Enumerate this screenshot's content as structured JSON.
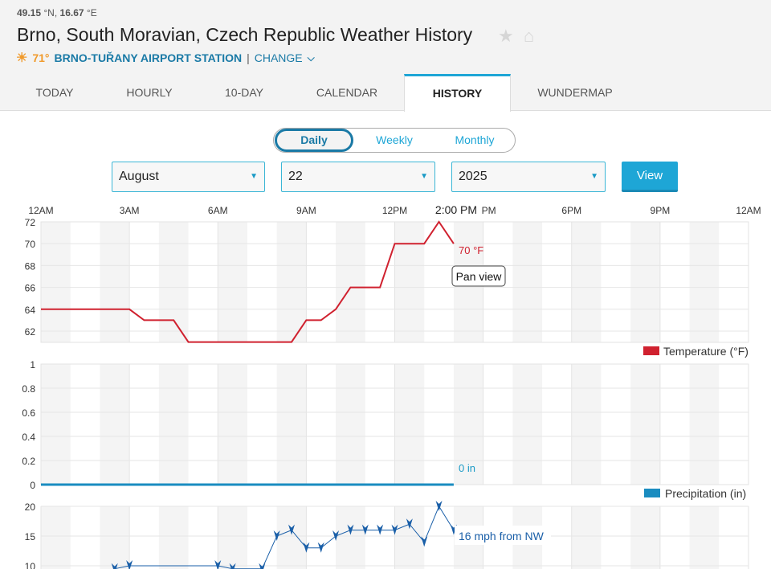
{
  "header": {
    "lat": "49.15",
    "lat_unit": "°N,",
    "lon": "16.67",
    "lon_unit": "°E",
    "title": "Brno, South Moravian, Czech Republic Weather History",
    "current_temp": "71°",
    "station": "BRNO-TUŘANY AIRPORT STATION",
    "separator": "|",
    "change": "CHANGE"
  },
  "tabs": [
    {
      "label": "TODAY"
    },
    {
      "label": "HOURLY"
    },
    {
      "label": "10-DAY"
    },
    {
      "label": "CALENDAR"
    },
    {
      "label": "HISTORY",
      "active": true
    },
    {
      "label": "WUNDERMAP"
    }
  ],
  "period": {
    "options": [
      "Daily",
      "Weekly",
      "Monthly"
    ],
    "selected": "Daily"
  },
  "date": {
    "month": "August",
    "day": "22",
    "year": "2025",
    "view": "View"
  },
  "colors": {
    "accent": "#1ea6d6",
    "temperature": "#d0212f",
    "precip": "#1a8cc0",
    "wind": "#1a5fa8"
  },
  "hover": {
    "time": "2:00 PM",
    "temp_label": "70 °F",
    "precip_label": "0 in",
    "wind_label": "16 mph from NW",
    "pan": "Pan view"
  },
  "chart_data": [
    {
      "type": "line",
      "title": "Temperature",
      "legend": "Temperature (°F)",
      "legend_position": "bottom-right",
      "x_ticks": [
        "12AM",
        "3AM",
        "6AM",
        "9AM",
        "12PM",
        "3PM",
        "6PM",
        "9PM",
        "12AM"
      ],
      "y_ticks": [
        62,
        64,
        66,
        68,
        70,
        72
      ],
      "ylim": [
        61,
        72
      ],
      "x_hours": [
        0,
        3,
        3.5,
        4.5,
        5,
        8.5,
        9,
        9.5,
        10,
        10.5,
        11.5,
        12,
        13,
        13.5,
        14
      ],
      "values": [
        64,
        64,
        63,
        63,
        61,
        61,
        63,
        63,
        64,
        66,
        66,
        70,
        70,
        72,
        70
      ]
    },
    {
      "type": "line",
      "title": "Precipitation",
      "legend": "Precipitation (in)",
      "legend_position": "bottom-right",
      "y_ticks": [
        0,
        0.2,
        0.4,
        0.6,
        0.8,
        1
      ],
      "ylim": [
        0,
        1
      ],
      "x_hours": [
        0,
        14
      ],
      "values": [
        0,
        0
      ]
    },
    {
      "type": "line",
      "title": "Wind",
      "y_ticks": [
        10,
        15,
        20
      ],
      "ylim": [
        10,
        20
      ],
      "x_hours": [
        2.5,
        3,
        6,
        6.5,
        7.5,
        8,
        8.5,
        9,
        9.5,
        10,
        10.5,
        11,
        11.5,
        12,
        12.5,
        13,
        13.5,
        14
      ],
      "values": [
        9.5,
        10,
        10,
        9.5,
        9.5,
        15,
        16,
        13,
        13,
        15,
        16,
        16,
        16,
        16,
        17,
        14,
        20,
        16
      ]
    }
  ]
}
